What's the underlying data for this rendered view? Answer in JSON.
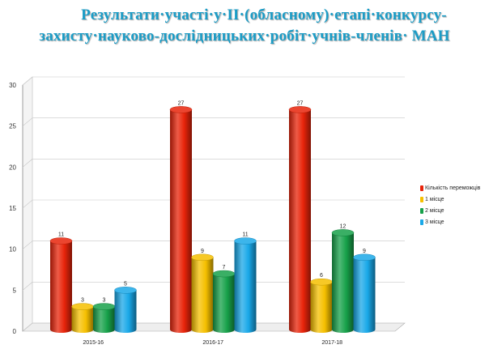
{
  "title": {
    "line1": "Результати·участі·у·ІІ·(обласному)·етапі·конкурсу-",
    "line2": "захисту·науково-дослідницьких·робіт·учнів-членів· МАН"
  },
  "chart_data": {
    "type": "bar",
    "categories": [
      "2015-16",
      "2016-17",
      "2017-18"
    ],
    "series": [
      {
        "name": "Кількість переможців",
        "values": [
          11,
          27,
          27
        ],
        "color": "#e8240a"
      },
      {
        "name": "1 місце",
        "values": [
          3,
          9,
          6
        ],
        "color": "#f6c000"
      },
      {
        "name": "2 місце",
        "values": [
          3,
          7,
          12
        ],
        "color": "#17a14a"
      },
      {
        "name": "3 місце",
        "values": [
          5,
          11,
          9
        ],
        "color": "#19a8e8"
      }
    ],
    "ylim": [
      0,
      30
    ],
    "yticks": [
      "0",
      "5",
      "10",
      "15",
      "20",
      "25",
      "30"
    ],
    "grid": true,
    "legend_position": "right"
  }
}
